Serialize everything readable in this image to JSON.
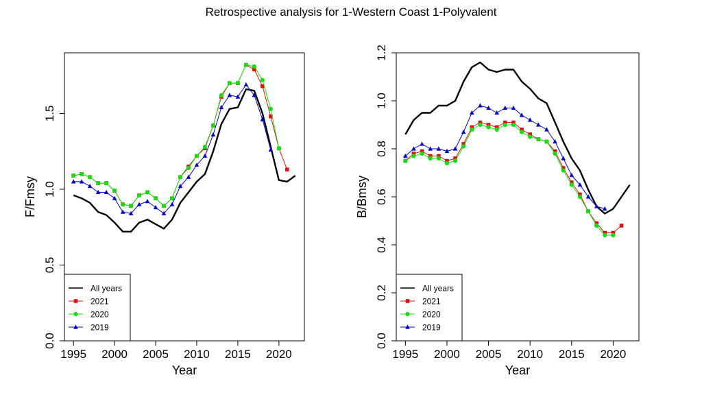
{
  "title": "Retrospective analysis for 1-Western Coast 1-Polyvalent",
  "colors": {
    "all_years": "#000000",
    "2021": "#e01010",
    "2020": "#10e010",
    "2019": "#0000c8"
  },
  "chart_data": [
    {
      "type": "line",
      "xlabel": "Year",
      "ylabel": "F/Fmsy",
      "xlim": [
        1993.9,
        2023.1
      ],
      "ylim": [
        0,
        1.9
      ],
      "xticks": [
        "1995",
        "2000",
        "2005",
        "2010",
        "2015",
        "2020"
      ],
      "yticks": [
        "0.0",
        "0.5",
        "1.0",
        "1.5"
      ],
      "legend": {
        "position": "bottom-left",
        "entries": [
          "All years",
          "2021",
          "2020",
          "2019"
        ]
      },
      "series": [
        {
          "name": "All years",
          "key": "all_years",
          "marker": "none",
          "x": [
            1995,
            1996,
            1997,
            1998,
            1999,
            2000,
            2001,
            2002,
            2003,
            2004,
            2005,
            2006,
            2007,
            2008,
            2009,
            2010,
            2011,
            2012,
            2013,
            2014,
            2015,
            2016,
            2017,
            2018,
            2019,
            2020,
            2021,
            2022
          ],
          "y": [
            0.96,
            0.94,
            0.91,
            0.85,
            0.83,
            0.78,
            0.72,
            0.72,
            0.78,
            0.8,
            0.77,
            0.74,
            0.8,
            0.91,
            0.98,
            1.05,
            1.1,
            1.25,
            1.43,
            1.53,
            1.54,
            1.66,
            1.65,
            1.5,
            1.28,
            1.06,
            1.05,
            1.09
          ]
        },
        {
          "name": "2021",
          "key": "2021",
          "marker": "square",
          "x": [
            1995,
            1996,
            1997,
            1998,
            1999,
            2000,
            2001,
            2002,
            2003,
            2004,
            2005,
            2006,
            2007,
            2008,
            2009,
            2010,
            2011,
            2012,
            2013,
            2014,
            2015,
            2016,
            2017,
            2018,
            2019,
            2020,
            2021
          ],
          "y": [
            1.09,
            1.1,
            1.08,
            1.04,
            1.04,
            0.99,
            0.9,
            0.89,
            0.96,
            0.98,
            0.94,
            0.89,
            0.94,
            1.08,
            1.15,
            1.22,
            1.27,
            1.42,
            1.61,
            1.7,
            1.7,
            1.82,
            1.79,
            1.68,
            1.48,
            1.27,
            1.13
          ]
        },
        {
          "name": "2020",
          "key": "2020",
          "marker": "circle",
          "x": [
            1995,
            1996,
            1997,
            1998,
            1999,
            2000,
            2001,
            2002,
            2003,
            2004,
            2005,
            2006,
            2007,
            2008,
            2009,
            2010,
            2011,
            2012,
            2013,
            2014,
            2015,
            2016,
            2017,
            2018,
            2019,
            2020
          ],
          "y": [
            1.09,
            1.1,
            1.08,
            1.04,
            1.04,
            0.99,
            0.9,
            0.89,
            0.96,
            0.98,
            0.94,
            0.89,
            0.94,
            1.08,
            1.14,
            1.22,
            1.28,
            1.42,
            1.62,
            1.7,
            1.7,
            1.82,
            1.81,
            1.72,
            1.53,
            1.27
          ]
        },
        {
          "name": "2019",
          "key": "2019",
          "marker": "triangle",
          "x": [
            1995,
            1996,
            1997,
            1998,
            1999,
            2000,
            2001,
            2002,
            2003,
            2004,
            2005,
            2006,
            2007,
            2008,
            2009,
            2010,
            2011,
            2012,
            2013,
            2014,
            2015,
            2016,
            2017,
            2018,
            2019
          ],
          "y": [
            1.05,
            1.05,
            1.02,
            0.98,
            0.98,
            0.94,
            0.85,
            0.84,
            0.9,
            0.92,
            0.88,
            0.84,
            0.9,
            1.02,
            1.08,
            1.16,
            1.22,
            1.36,
            1.54,
            1.62,
            1.61,
            1.69,
            1.62,
            1.46,
            1.26
          ]
        }
      ]
    },
    {
      "type": "line",
      "xlabel": "Year",
      "ylabel": "B/Bmsy",
      "xlim": [
        1993.9,
        2023.1
      ],
      "ylim": [
        0,
        1.2
      ],
      "xticks": [
        "1995",
        "2000",
        "2005",
        "2010",
        "2015",
        "2020"
      ],
      "yticks": [
        "0.0",
        "0.2",
        "0.4",
        "0.6",
        "0.8",
        "1.0",
        "1.2"
      ],
      "legend": {
        "position": "bottom-left",
        "entries": [
          "All years",
          "2021",
          "2020",
          "2019"
        ]
      },
      "series": [
        {
          "name": "All years",
          "key": "all_years",
          "marker": "none",
          "x": [
            1995,
            1996,
            1997,
            1998,
            1999,
            2000,
            2001,
            2002,
            2003,
            2004,
            2005,
            2006,
            2007,
            2008,
            2009,
            2010,
            2011,
            2012,
            2013,
            2014,
            2015,
            2016,
            2017,
            2018,
            2019,
            2020,
            2021,
            2022
          ],
          "y": [
            0.86,
            0.92,
            0.95,
            0.95,
            0.98,
            0.98,
            1.0,
            1.08,
            1.14,
            1.16,
            1.13,
            1.12,
            1.13,
            1.13,
            1.08,
            1.05,
            1.01,
            0.99,
            0.91,
            0.83,
            0.76,
            0.71,
            0.63,
            0.56,
            0.53,
            0.55,
            0.6,
            0.65
          ]
        },
        {
          "name": "2021",
          "key": "2021",
          "marker": "square",
          "x": [
            1995,
            1996,
            1997,
            1998,
            1999,
            2000,
            2001,
            2002,
            2003,
            2004,
            2005,
            2006,
            2007,
            2008,
            2009,
            2010,
            2011,
            2012,
            2013,
            2014,
            2015,
            2016,
            2017,
            2018,
            2019,
            2020,
            2021
          ],
          "y": [
            0.75,
            0.78,
            0.79,
            0.77,
            0.77,
            0.75,
            0.76,
            0.82,
            0.89,
            0.91,
            0.9,
            0.89,
            0.91,
            0.91,
            0.88,
            0.86,
            0.84,
            0.83,
            0.79,
            0.72,
            0.66,
            0.61,
            0.54,
            0.49,
            0.45,
            0.45,
            0.48
          ]
        },
        {
          "name": "2020",
          "key": "2020",
          "marker": "circle",
          "x": [
            1995,
            1996,
            1997,
            1998,
            1999,
            2000,
            2001,
            2002,
            2003,
            2004,
            2005,
            2006,
            2007,
            2008,
            2009,
            2010,
            2011,
            2012,
            2013,
            2014,
            2015,
            2016,
            2017,
            2018,
            2019,
            2020
          ],
          "y": [
            0.75,
            0.77,
            0.78,
            0.76,
            0.76,
            0.74,
            0.75,
            0.81,
            0.88,
            0.9,
            0.89,
            0.88,
            0.9,
            0.9,
            0.87,
            0.85,
            0.84,
            0.83,
            0.78,
            0.71,
            0.65,
            0.6,
            0.54,
            0.48,
            0.44,
            0.44
          ]
        },
        {
          "name": "2019",
          "key": "2019",
          "marker": "triangle",
          "x": [
            1995,
            1996,
            1997,
            1998,
            1999,
            2000,
            2001,
            2002,
            2003,
            2004,
            2005,
            2006,
            2007,
            2008,
            2009,
            2010,
            2011,
            2012,
            2013,
            2014,
            2015,
            2016,
            2017,
            2018,
            2019
          ],
          "y": [
            0.77,
            0.8,
            0.82,
            0.8,
            0.8,
            0.79,
            0.8,
            0.87,
            0.95,
            0.98,
            0.97,
            0.95,
            0.97,
            0.97,
            0.94,
            0.92,
            0.9,
            0.88,
            0.83,
            0.76,
            0.69,
            0.65,
            0.6,
            0.56,
            0.55
          ]
        }
      ]
    }
  ]
}
